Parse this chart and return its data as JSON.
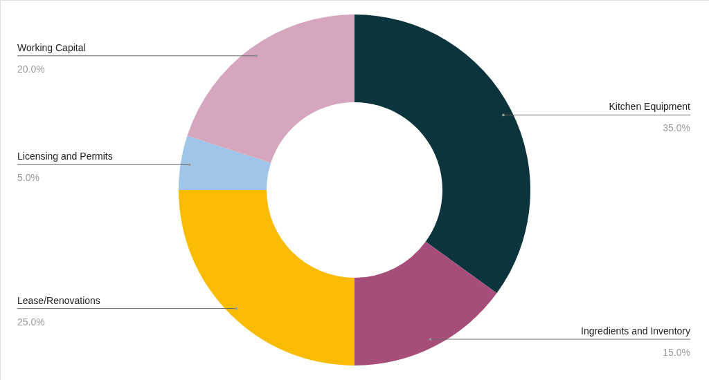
{
  "chart_data": {
    "type": "donut",
    "categories": [
      "Kitchen Equipment",
      "Ingredients and Inventory",
      "Lease/Renovations",
      "Licensing and Permits",
      "Working Capital"
    ],
    "values": [
      35,
      15,
      25,
      5,
      20
    ],
    "value_labels": [
      "35.0%",
      "15.0%",
      "25.0%",
      "5.0%",
      "20.0%"
    ],
    "colors": [
      "#0c343d",
      "#a64d79",
      "#f9bc02",
      "#9fc5e8",
      "#d5a6bd"
    ]
  }
}
